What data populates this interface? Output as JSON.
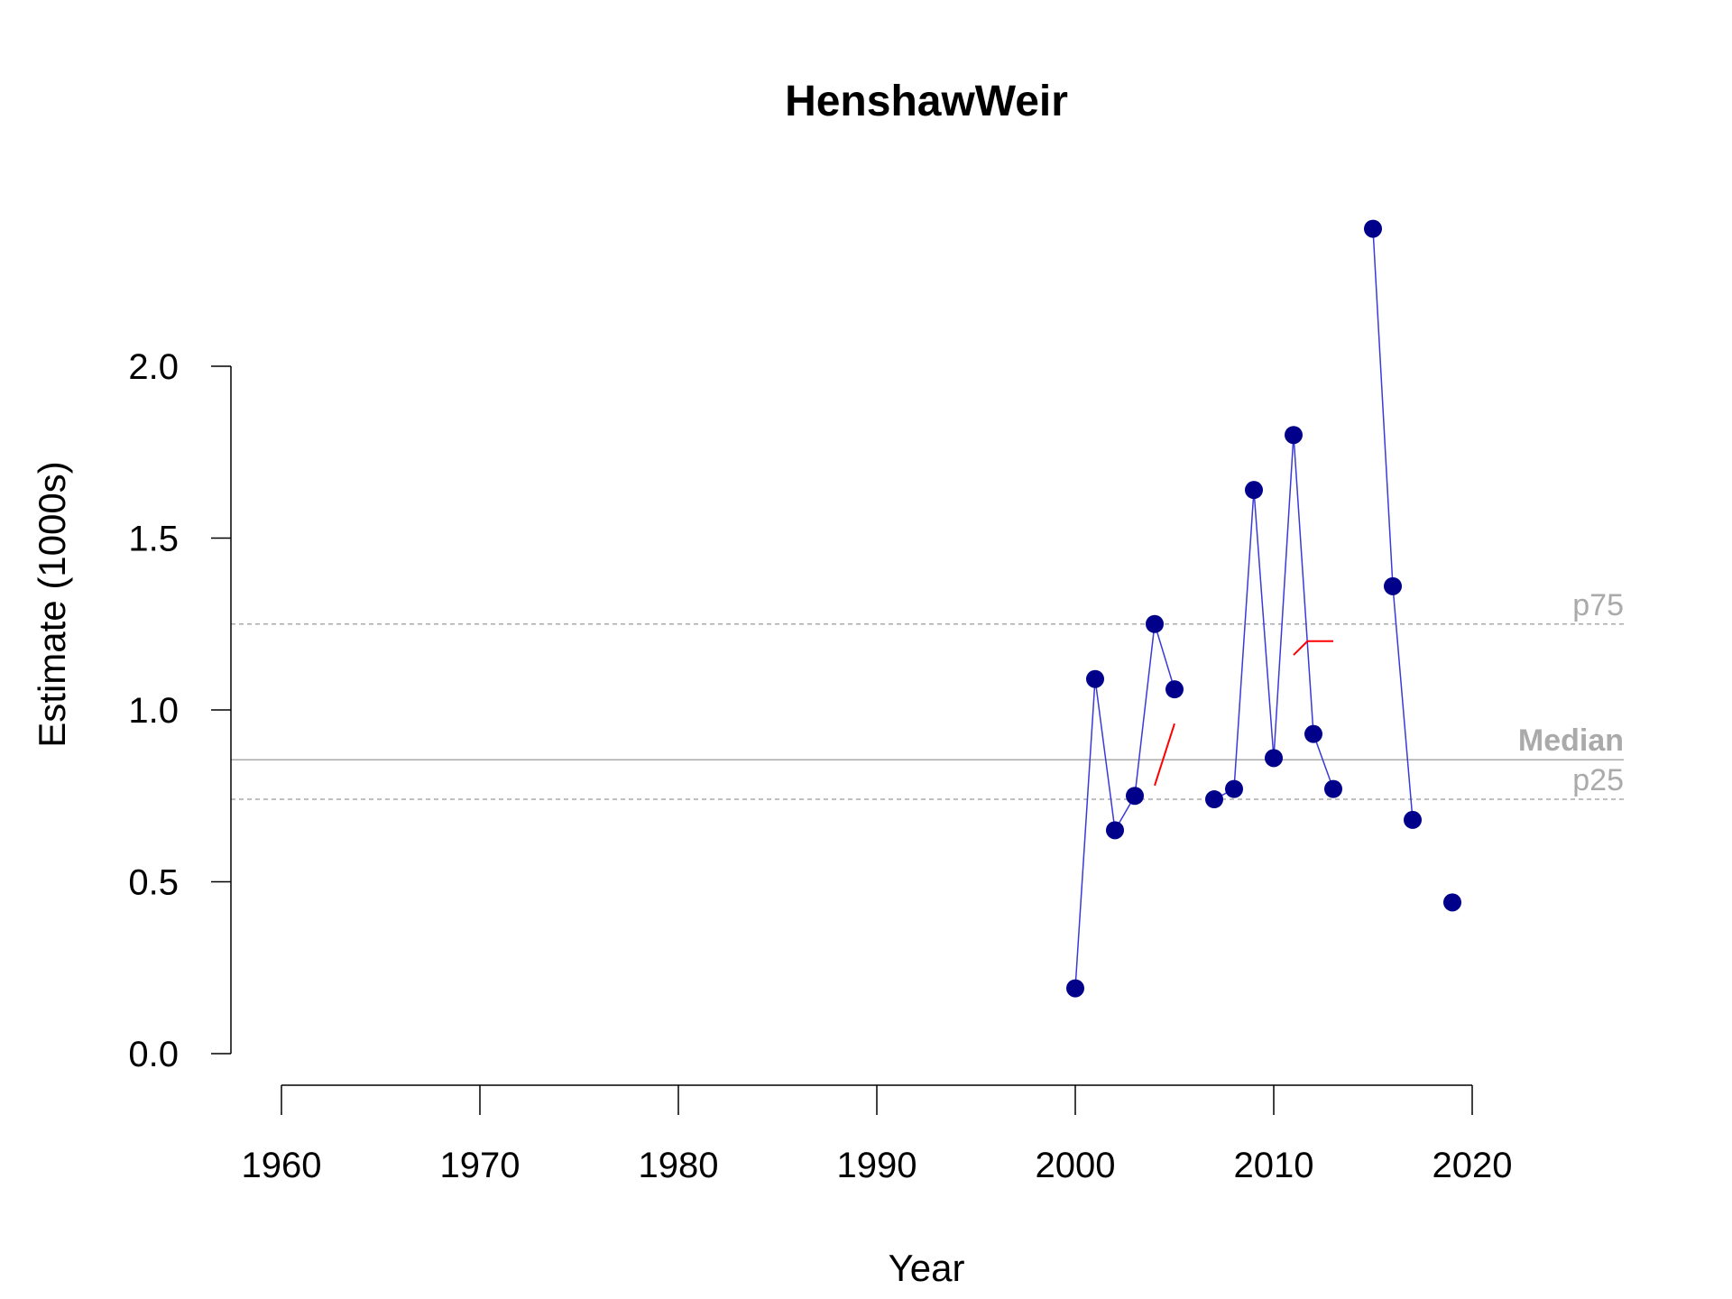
{
  "chart_data": {
    "type": "line",
    "title": "HenshawWeir",
    "xlabel": "Year",
    "ylabel": "Estimate (1000s)",
    "xlim": [
      1960,
      2020
    ],
    "ylim": [
      0,
      2.0
    ],
    "x_ticks": [
      1960,
      1970,
      1980,
      1990,
      2000,
      2010,
      2020
    ],
    "y_ticks": [
      "0.0",
      "0.5",
      "1.0",
      "1.5",
      "2.0"
    ],
    "grid": false,
    "series": [
      {
        "color": "#00008b",
        "line_color": "#3a3ad6",
        "segments": [
          [
            [
              2000,
              0.19
            ],
            [
              2001,
              1.09
            ],
            [
              2002,
              0.65
            ],
            [
              2003,
              0.75
            ],
            [
              2004,
              1.25
            ],
            [
              2005,
              1.06
            ]
          ],
          [
            [
              2007,
              0.74
            ],
            [
              2008,
              0.77
            ],
            [
              2009,
              1.64
            ],
            [
              2010,
              0.86
            ],
            [
              2011,
              1.8
            ],
            [
              2012,
              0.93
            ],
            [
              2013,
              0.77
            ]
          ],
          [
            [
              2015,
              2.4
            ],
            [
              2016,
              1.36
            ],
            [
              2017,
              0.68
            ]
          ],
          [
            [
              2019,
              0.44
            ]
          ]
        ]
      }
    ],
    "trend_lines": [
      {
        "color": "#ff0000",
        "points": [
          [
            2004,
            0.78
          ],
          [
            2005,
            0.96
          ]
        ]
      },
      {
        "color": "#ff0000",
        "points": [
          [
            2011,
            1.16
          ],
          [
            2011.7,
            1.2
          ],
          [
            2013,
            1.2
          ]
        ]
      }
    ],
    "reference_lines": [
      {
        "label": "p75",
        "value": 1.25,
        "style": "dashed",
        "bold": false
      },
      {
        "label": "Median",
        "value": 0.855,
        "style": "solid",
        "bold": true
      },
      {
        "label": "p25",
        "value": 0.74,
        "style": "dashed",
        "bold": false
      }
    ]
  }
}
